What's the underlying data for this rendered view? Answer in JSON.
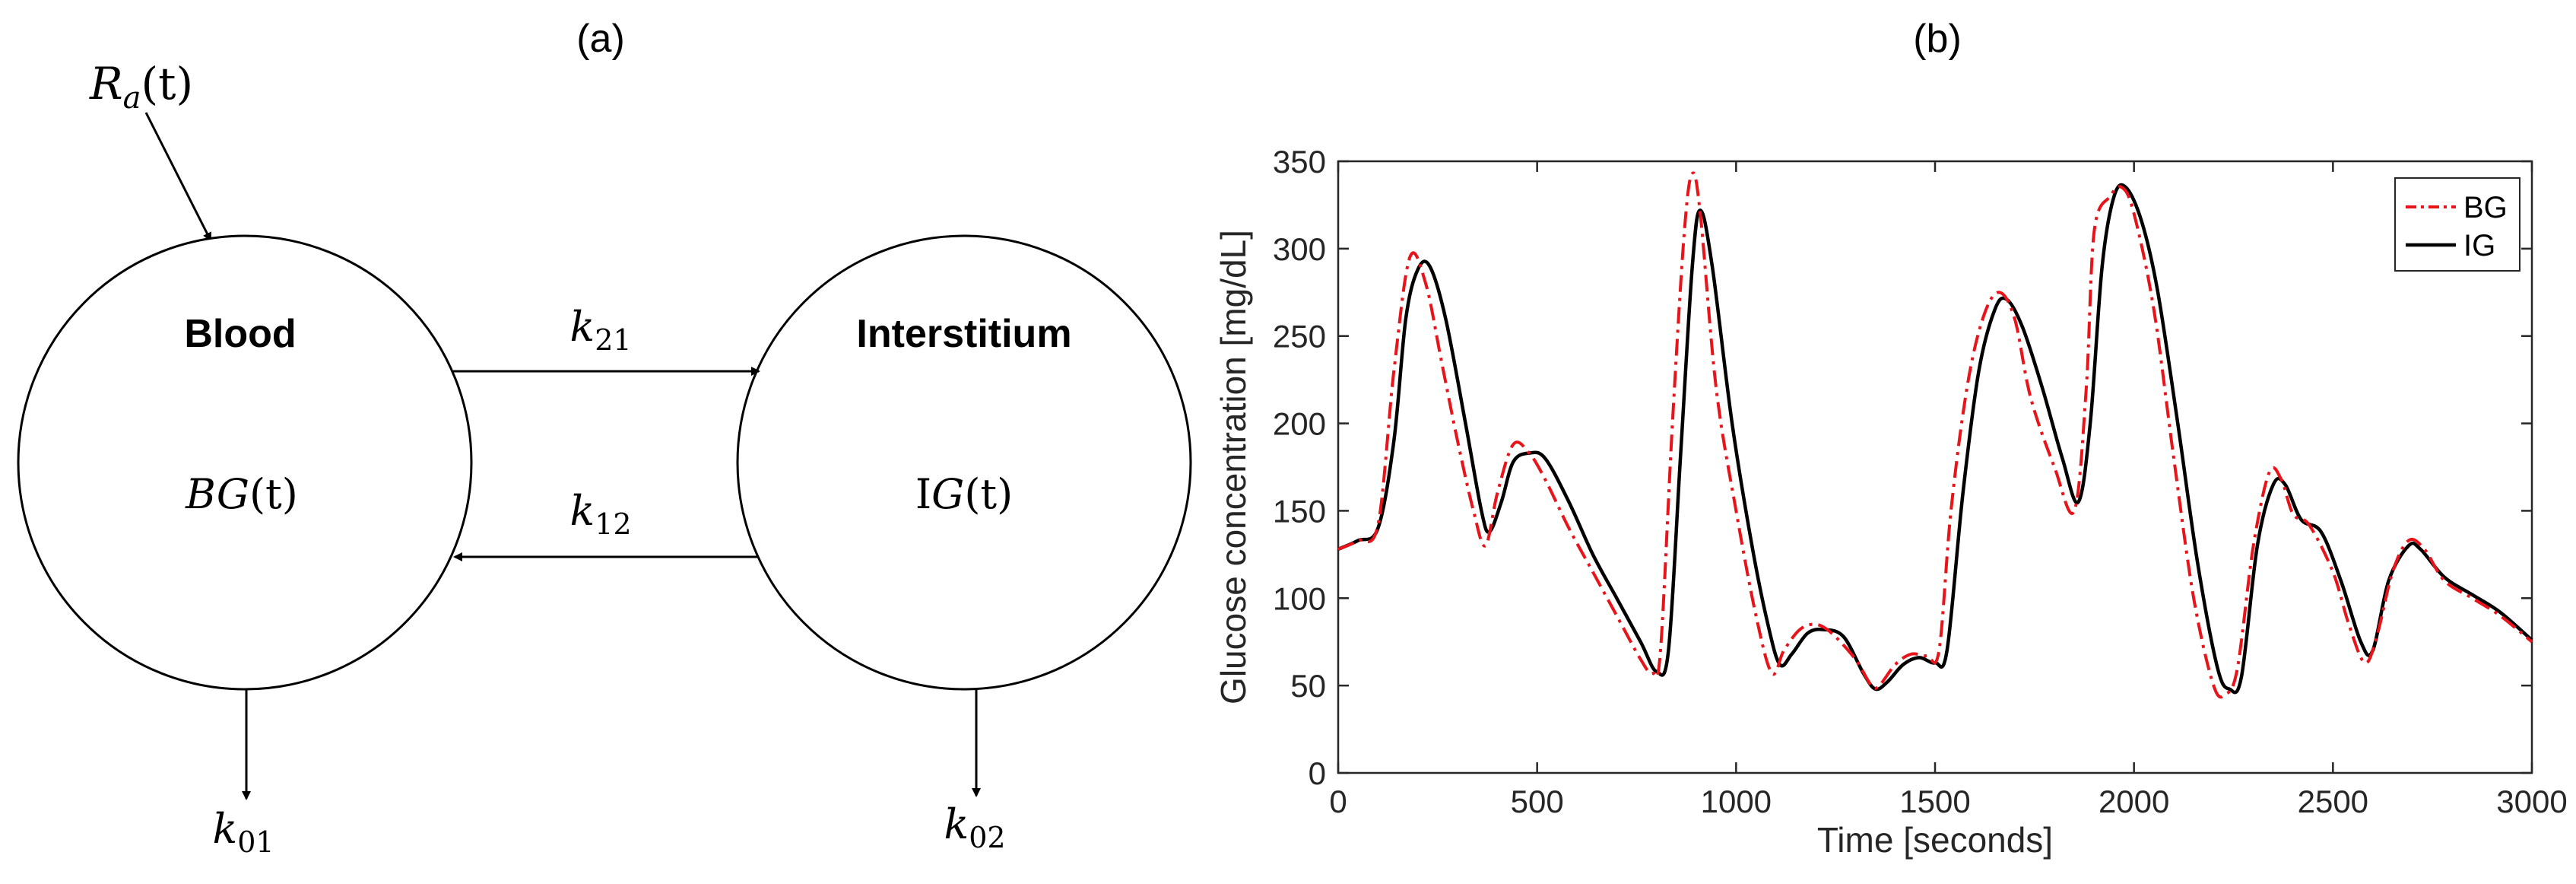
{
  "panel_a": {
    "label": "(a)",
    "input": "R",
    "input_sub": "a",
    "input_arg": "(t)",
    "blood": {
      "title": "Blood",
      "var_main": "BG",
      "var_arg": "(t)"
    },
    "interstitium": {
      "title": "Interstitium",
      "var_prefix": "I",
      "var_main": "G",
      "var_arg": "(t)"
    },
    "k21": {
      "main": "k",
      "sub": "21"
    },
    "k12": {
      "main": "k",
      "sub": "12"
    },
    "k01": {
      "main": "k",
      "sub": "01"
    },
    "k02": {
      "main": "k",
      "sub": "02"
    }
  },
  "panel_b": {
    "label": "(b)"
  },
  "chart_data": {
    "type": "line",
    "xlabel": "Time [seconds]",
    "ylabel": "Glucose concentration [mg/dL]",
    "xlim": [
      0,
      3000
    ],
    "ylim": [
      0,
      350
    ],
    "xticks": [
      0,
      500,
      1000,
      1500,
      2000,
      2500,
      3000
    ],
    "yticks": [
      0,
      50,
      100,
      150,
      200,
      250,
      300,
      350
    ],
    "grid": false,
    "legend_position": "top-right",
    "series": [
      {
        "name": "BG",
        "color": "#e8141a",
        "style": "dash-dot",
        "points": [
          [
            0,
            128
          ],
          [
            50,
            133
          ],
          [
            100,
            142
          ],
          [
            140,
            230
          ],
          [
            180,
            295
          ],
          [
            220,
            280
          ],
          [
            260,
            235
          ],
          [
            300,
            190
          ],
          [
            340,
            150
          ],
          [
            370,
            130
          ],
          [
            400,
            160
          ],
          [
            440,
            188
          ],
          [
            480,
            183
          ],
          [
            520,
            168
          ],
          [
            580,
            140
          ],
          [
            640,
            115
          ],
          [
            700,
            90
          ],
          [
            760,
            65
          ],
          [
            790,
            57
          ],
          [
            810,
            70
          ],
          [
            840,
            200
          ],
          [
            870,
            310
          ],
          [
            890,
            343
          ],
          [
            910,
            320
          ],
          [
            950,
            220
          ],
          [
            1000,
            150
          ],
          [
            1050,
            90
          ],
          [
            1090,
            57
          ],
          [
            1120,
            70
          ],
          [
            1160,
            82
          ],
          [
            1200,
            85
          ],
          [
            1240,
            80
          ],
          [
            1300,
            65
          ],
          [
            1340,
            50
          ],
          [
            1360,
            50
          ],
          [
            1400,
            62
          ],
          [
            1440,
            68
          ],
          [
            1480,
            67
          ],
          [
            1510,
            70
          ],
          [
            1540,
            150
          ],
          [
            1580,
            220
          ],
          [
            1620,
            260
          ],
          [
            1660,
            275
          ],
          [
            1700,
            260
          ],
          [
            1740,
            215
          ],
          [
            1800,
            175
          ],
          [
            1850,
            150
          ],
          [
            1880,
            220
          ],
          [
            1900,
            310
          ],
          [
            1940,
            330
          ],
          [
            1970,
            335
          ],
          [
            2000,
            320
          ],
          [
            2050,
            265
          ],
          [
            2100,
            180
          ],
          [
            2150,
            100
          ],
          [
            2200,
            50
          ],
          [
            2230,
            45
          ],
          [
            2260,
            60
          ],
          [
            2300,
            130
          ],
          [
            2340,
            172
          ],
          [
            2370,
            168
          ],
          [
            2400,
            148
          ],
          [
            2440,
            142
          ],
          [
            2500,
            115
          ],
          [
            2540,
            85
          ],
          [
            2580,
            63
          ],
          [
            2610,
            78
          ],
          [
            2650,
            115
          ],
          [
            2690,
            133
          ],
          [
            2730,
            128
          ],
          [
            2780,
            110
          ],
          [
            2850,
            100
          ],
          [
            2920,
            90
          ],
          [
            3000,
            75
          ]
        ]
      },
      {
        "name": "IG",
        "color": "#000000",
        "style": "solid",
        "points": [
          [
            0,
            128
          ],
          [
            50,
            133
          ],
          [
            100,
            140
          ],
          [
            140,
            190
          ],
          [
            170,
            260
          ],
          [
            200,
            288
          ],
          [
            230,
            290
          ],
          [
            270,
            260
          ],
          [
            320,
            200
          ],
          [
            360,
            150
          ],
          [
            380,
            138
          ],
          [
            410,
            155
          ],
          [
            440,
            178
          ],
          [
            480,
            183
          ],
          [
            520,
            180
          ],
          [
            580,
            155
          ],
          [
            640,
            125
          ],
          [
            700,
            100
          ],
          [
            760,
            75
          ],
          [
            800,
            58
          ],
          [
            830,
            70
          ],
          [
            860,
            180
          ],
          [
            890,
            290
          ],
          [
            910,
            322
          ],
          [
            940,
            290
          ],
          [
            990,
            200
          ],
          [
            1040,
            130
          ],
          [
            1080,
            85
          ],
          [
            1110,
            62
          ],
          [
            1140,
            68
          ],
          [
            1180,
            80
          ],
          [
            1220,
            82
          ],
          [
            1270,
            78
          ],
          [
            1320,
            57
          ],
          [
            1350,
            48
          ],
          [
            1380,
            52
          ],
          [
            1420,
            62
          ],
          [
            1460,
            66
          ],
          [
            1500,
            63
          ],
          [
            1530,
            70
          ],
          [
            1570,
            160
          ],
          [
            1610,
            230
          ],
          [
            1650,
            265
          ],
          [
            1680,
            271
          ],
          [
            1720,
            255
          ],
          [
            1770,
            220
          ],
          [
            1820,
            180
          ],
          [
            1860,
            155
          ],
          [
            1890,
            200
          ],
          [
            1920,
            290
          ],
          [
            1950,
            330
          ],
          [
            1980,
            335
          ],
          [
            2020,
            315
          ],
          [
            2060,
            275
          ],
          [
            2110,
            200
          ],
          [
            2160,
            120
          ],
          [
            2210,
            60
          ],
          [
            2240,
            48
          ],
          [
            2270,
            55
          ],
          [
            2310,
            130
          ],
          [
            2350,
            165
          ],
          [
            2380,
            165
          ],
          [
            2420,
            145
          ],
          [
            2470,
            138
          ],
          [
            2520,
            110
          ],
          [
            2570,
            75
          ],
          [
            2600,
            70
          ],
          [
            2640,
            110
          ],
          [
            2690,
            130
          ],
          [
            2720,
            128
          ],
          [
            2780,
            112
          ],
          [
            2850,
            102
          ],
          [
            2920,
            92
          ],
          [
            3000,
            76
          ]
        ]
      }
    ]
  }
}
